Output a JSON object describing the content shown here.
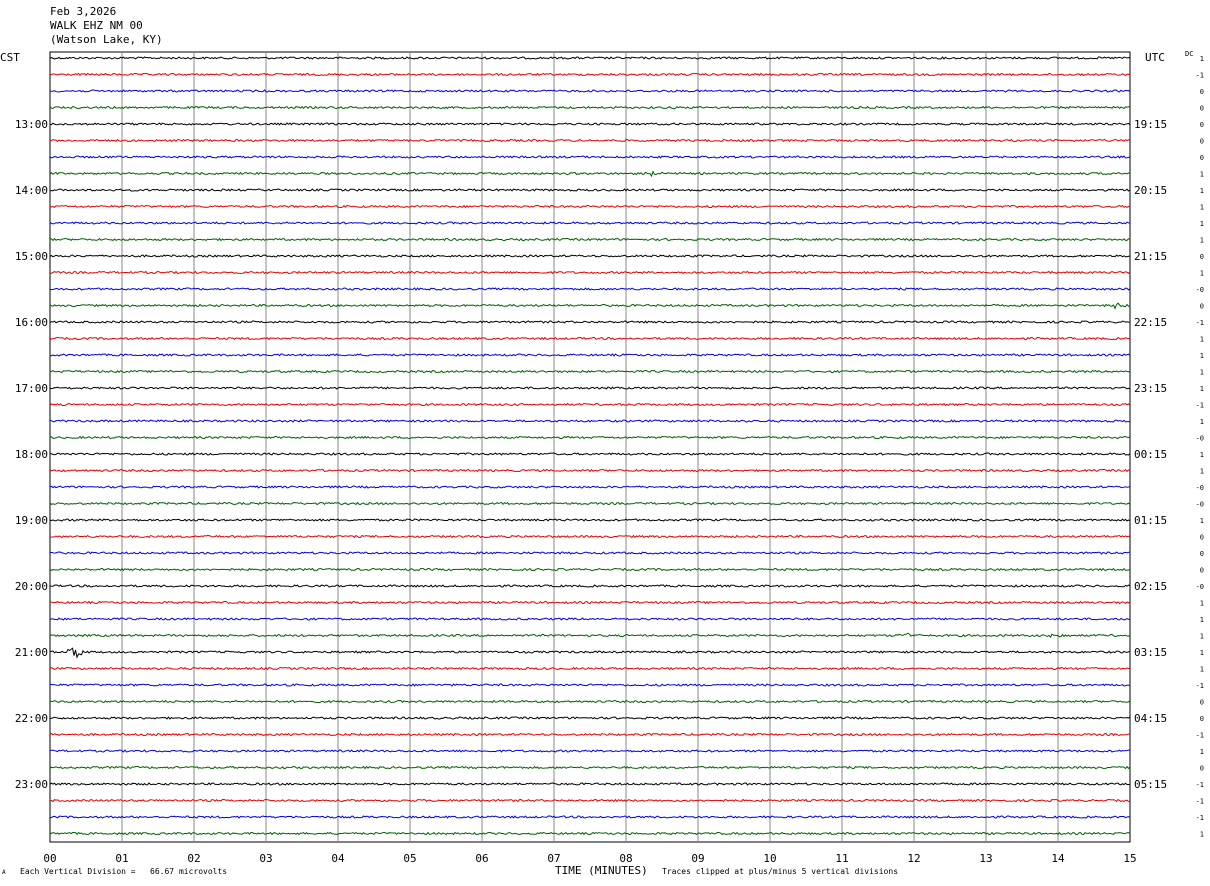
{
  "header": {
    "date": "Feb 3,2026",
    "station": "WALK EHZ NM 00",
    "location": "(Watson Lake, KY)"
  },
  "left_timezone": "CST",
  "right_timezone": "UTC",
  "dc_label": "DC",
  "footer": {
    "vertical_division": "Each Vertical Division =   66.67 microvolts",
    "clip_note": "Traces clipped at plus/minus 5 vertical divisions",
    "corner_mark": "A"
  },
  "chart_data": {
    "type": "line",
    "xlabel": "TIME (MINUTES)",
    "x_ticks": [
      "00",
      "01",
      "02",
      "03",
      "04",
      "05",
      "06",
      "07",
      "08",
      "09",
      "10",
      "11",
      "12",
      "13",
      "14",
      "15"
    ],
    "xlim": [
      0,
      15
    ],
    "grid": true,
    "left_hour_labels": [
      "13:00",
      "14:00",
      "15:00",
      "16:00",
      "17:00",
      "18:00",
      "19:00",
      "20:00",
      "21:00",
      "22:00",
      "23:00"
    ],
    "right_hour_labels": [
      "19:15",
      "20:15",
      "21:15",
      "22:15",
      "23:15",
      "00:15",
      "01:15",
      "02:15",
      "03:15",
      "04:15",
      "05:15"
    ],
    "trace_colors": [
      "#000000",
      "#e00000",
      "#0000e0",
      "#006000"
    ],
    "dc_offsets": [
      "1",
      "-1",
      "0",
      "0",
      "0",
      "0",
      "0",
      "1",
      "1",
      "1",
      "1",
      "1",
      "0",
      "1",
      "-0",
      "0",
      "-1",
      "1",
      "1",
      "1",
      "1",
      "-1",
      "1",
      "-0",
      "1",
      "1",
      "-0",
      "-0",
      "1",
      "0",
      "0",
      "0",
      "-0",
      "1",
      "1",
      "1",
      "1",
      "1",
      "-1",
      "0",
      "0",
      "-1",
      "1",
      "0",
      "-1",
      "-1",
      "-1",
      "1"
    ],
    "events": [
      {
        "trace": 7,
        "minute": 8.4,
        "amp": 3
      },
      {
        "trace": 15,
        "minute": 14.8,
        "amp": 3
      },
      {
        "trace": 36,
        "minute": 0.35,
        "amp": 6
      },
      {
        "trace": 35,
        "minute": 11.9,
        "amp": 3
      },
      {
        "trace": 35,
        "minute": 14.0,
        "amp": 3
      }
    ]
  }
}
